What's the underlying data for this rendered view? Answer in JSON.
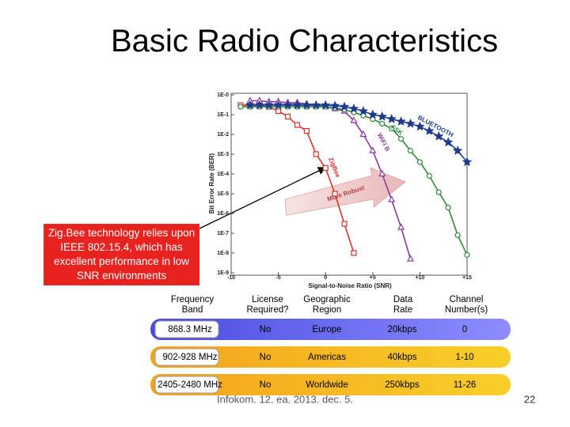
{
  "title": "Basic Radio Characteristics",
  "callout": "Zig.Bee technology relies upon IEEE 802.15.4, which has excellent performance in low SNR environments",
  "chart_data": {
    "type": "line",
    "x_label": "Signal-to-Noise Ratio (SNR)",
    "y_label": "Bit Error Rate (BER)",
    "ylog": true,
    "xlim": [
      -10,
      15
    ],
    "ylim": [
      1e-09,
      1
    ],
    "xticks": [
      -10,
      -5,
      0,
      {
        "value": 5,
        "label": "+5"
      },
      {
        "value": 10,
        "label": "+10"
      },
      {
        "value": 15,
        "label": "+15"
      }
    ],
    "yticks": [
      {
        "value": 1,
        "label": "1E-0"
      },
      {
        "value": 0.1,
        "label": "1E-1"
      },
      {
        "value": 0.01,
        "label": "1E-2"
      },
      {
        "value": 0.001,
        "label": "1E-3"
      },
      {
        "value": 0.0001,
        "label": "1E-4"
      },
      {
        "value": 1e-05,
        "label": "1E-5"
      },
      {
        "value": 1e-06,
        "label": "1E-6"
      },
      {
        "value": 1e-07,
        "label": "1E-7"
      },
      {
        "value": 1e-08,
        "label": "1E-8"
      },
      {
        "value": 1e-09,
        "label": "1E-9"
      }
    ],
    "annotation": "More Robust",
    "series": [
      {
        "name": "ZigBee",
        "color": "#d9342b",
        "marker": "square",
        "x": [
          -9,
          -8,
          -7,
          -6,
          -5,
          -4,
          -3,
          -2,
          -1,
          0,
          1,
          2,
          3
        ],
        "values": [
          0.3,
          0.3,
          0.28,
          0.25,
          0.15,
          0.08,
          0.03,
          0.015,
          0.001,
          0.0002,
          1e-05,
          3e-07,
          1e-08
        ]
      },
      {
        "name": "WiFi B",
        "color": "#8a3a9e",
        "marker": "triangle",
        "x": [
          -8,
          -7,
          -6,
          -5,
          -4,
          -3,
          -2,
          -1,
          0,
          1,
          2,
          3,
          4,
          5,
          6,
          7,
          8,
          9
        ],
        "values": [
          0.5,
          0.5,
          0.45,
          0.45,
          0.4,
          0.4,
          0.35,
          0.3,
          0.25,
          0.2,
          0.15,
          0.05,
          0.01,
          0.0015,
          0.0001,
          5e-06,
          2e-07,
          5e-09
        ]
      },
      {
        "name": "FSK",
        "color": "#2e8b3a",
        "marker": "circle",
        "x": [
          -9,
          -8,
          -7,
          -6,
          -5,
          -4,
          -3,
          -2,
          -1,
          0,
          1,
          2,
          3,
          4,
          5,
          6,
          7,
          8,
          9,
          10,
          11,
          12,
          13,
          14,
          15
        ],
        "values": [
          0.25,
          0.25,
          0.25,
          0.25,
          0.25,
          0.25,
          0.25,
          0.25,
          0.25,
          0.25,
          0.22,
          0.18,
          0.13,
          0.09,
          0.06,
          0.035,
          0.02,
          0.006,
          0.0015,
          0.0004,
          8e-05,
          1.2e-05,
          2e-06,
          8e-08,
          8e-09
        ]
      },
      {
        "name": "BLUETOOTH",
        "color": "#1f3b8c",
        "marker": "star",
        "x": [
          -8,
          -7,
          -6,
          -5,
          -4,
          -3,
          -2,
          -1,
          0,
          1,
          2,
          3,
          4,
          5,
          6,
          7,
          8,
          9,
          10,
          11,
          12,
          13,
          14,
          15
        ],
        "values": [
          0.3,
          0.3,
          0.3,
          0.3,
          0.3,
          0.3,
          0.3,
          0.3,
          0.3,
          0.28,
          0.25,
          0.2,
          0.15,
          0.1,
          0.08,
          0.06,
          0.045,
          0.035,
          0.025,
          0.015,
          0.008,
          0.004,
          0.0015,
          0.0004
        ]
      }
    ]
  },
  "table": {
    "header": [
      "Frequency\nBand",
      "License\nRequired?",
      "Geographic\nRegion",
      "Data\nRate",
      "Channel\nNumber(s)"
    ],
    "rows": [
      [
        "868.3 MHz",
        "No",
        "Europe",
        "20kbps",
        "0"
      ],
      [
        "902-928 MHz",
        "No",
        "Americas",
        "40kbps",
        "1-10"
      ],
      [
        "2405-2480 MHz",
        "No",
        "Worldwide",
        "250kbps",
        "11-26"
      ]
    ]
  },
  "footer": "Infokom. 12. ea. 2013. dec. 5.",
  "page_number": "22"
}
